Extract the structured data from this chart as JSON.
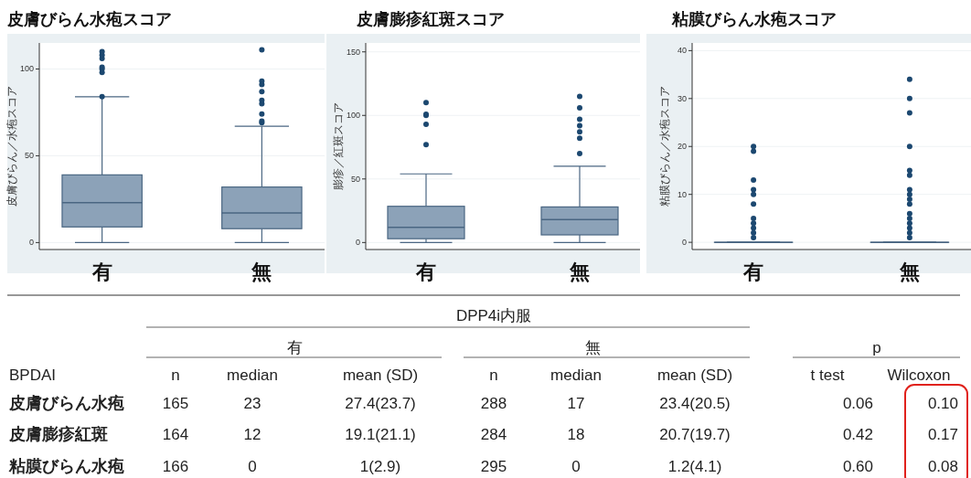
{
  "chart_data": [
    {
      "type": "box",
      "title": "皮膚びらん水疱スコア",
      "ylabel": "皮膚びらん／水疱スコア",
      "categories": [
        "有",
        "無"
      ],
      "color": "#8ca2b8",
      "grid": "y",
      "ylim": [
        -4,
        115
      ],
      "yticks": [
        0,
        50,
        100
      ],
      "boxes": [
        {
          "low": 0,
          "q1": 9,
          "median": 23,
          "q3": 39,
          "high": 84,
          "outliers": [
            84,
            98,
            100,
            101,
            106,
            108,
            110
          ]
        },
        {
          "low": 0,
          "q1": 8,
          "median": 17,
          "q3": 32,
          "high": 67,
          "outliers": [
            69,
            70,
            74,
            80,
            82,
            87,
            91,
            93,
            111
          ]
        }
      ]
    },
    {
      "type": "box",
      "title": "皮膚膨疹紅斑スコア",
      "ylabel": "膨疹／紅斑スコア",
      "categories": [
        "有",
        "無"
      ],
      "color": "#8ca2b8",
      "grid": "y",
      "ylim": [
        -5.5,
        157
      ],
      "yticks": [
        0,
        50,
        100,
        150
      ],
      "boxes": [
        {
          "low": 0,
          "q1": 3,
          "median": 12,
          "q3": 28.5,
          "high": 54,
          "outliers": [
            77,
            93,
            100,
            101,
            110
          ]
        },
        {
          "low": 0,
          "q1": 6,
          "median": 18,
          "q3": 28,
          "high": 60,
          "outliers": [
            70,
            82,
            87,
            92,
            97,
            106,
            115
          ]
        }
      ]
    },
    {
      "type": "box",
      "title": "粘膜びらん水疱スコア",
      "ylabel": "粘膜びらん／水疱スコア",
      "categories": [
        "有",
        "無"
      ],
      "color": "#8ca2b8",
      "grid": "y",
      "ylim": [
        -1.5,
        41.6
      ],
      "yticks": [
        0,
        10,
        20,
        30,
        40
      ],
      "boxes": [
        {
          "low": 0,
          "q1": 0,
          "median": 0,
          "q3": 0,
          "high": 0,
          "outliers": [
            1,
            2,
            3,
            4,
            5,
            8,
            10,
            11,
            13,
            19,
            20
          ]
        },
        {
          "low": 0,
          "q1": 0,
          "median": 0,
          "q3": 0,
          "high": 0,
          "outliers": [
            1,
            2,
            3,
            4,
            5,
            6,
            8,
            9,
            10,
            11,
            14,
            15,
            20,
            27,
            30,
            34
          ]
        }
      ]
    },
    {
      "type": "other",
      "annotations": [
        "DPP4i内服",
        "有",
        "無",
        "p",
        "BPDAI",
        "n",
        "median",
        "mean (SD)",
        "n",
        "median",
        "mean (SD)",
        "t test",
        "Wilcoxon",
        "皮膚びらん水疱",
        "165",
        "23",
        "27.4(23.7)",
        "288",
        "17",
        "23.4(20.5)",
        "0.06",
        "0.10",
        "皮膚膨疹紅斑",
        "164",
        "12",
        "19.1(21.1)",
        "284",
        "18",
        "20.7(19.7)",
        "0.42",
        "0.17",
        "粘膜びらん水疱",
        "166",
        "0",
        "1(2.9)",
        "295",
        "0",
        "1.2(4.1)",
        "0.60",
        "0.08"
      ]
    }
  ]
}
